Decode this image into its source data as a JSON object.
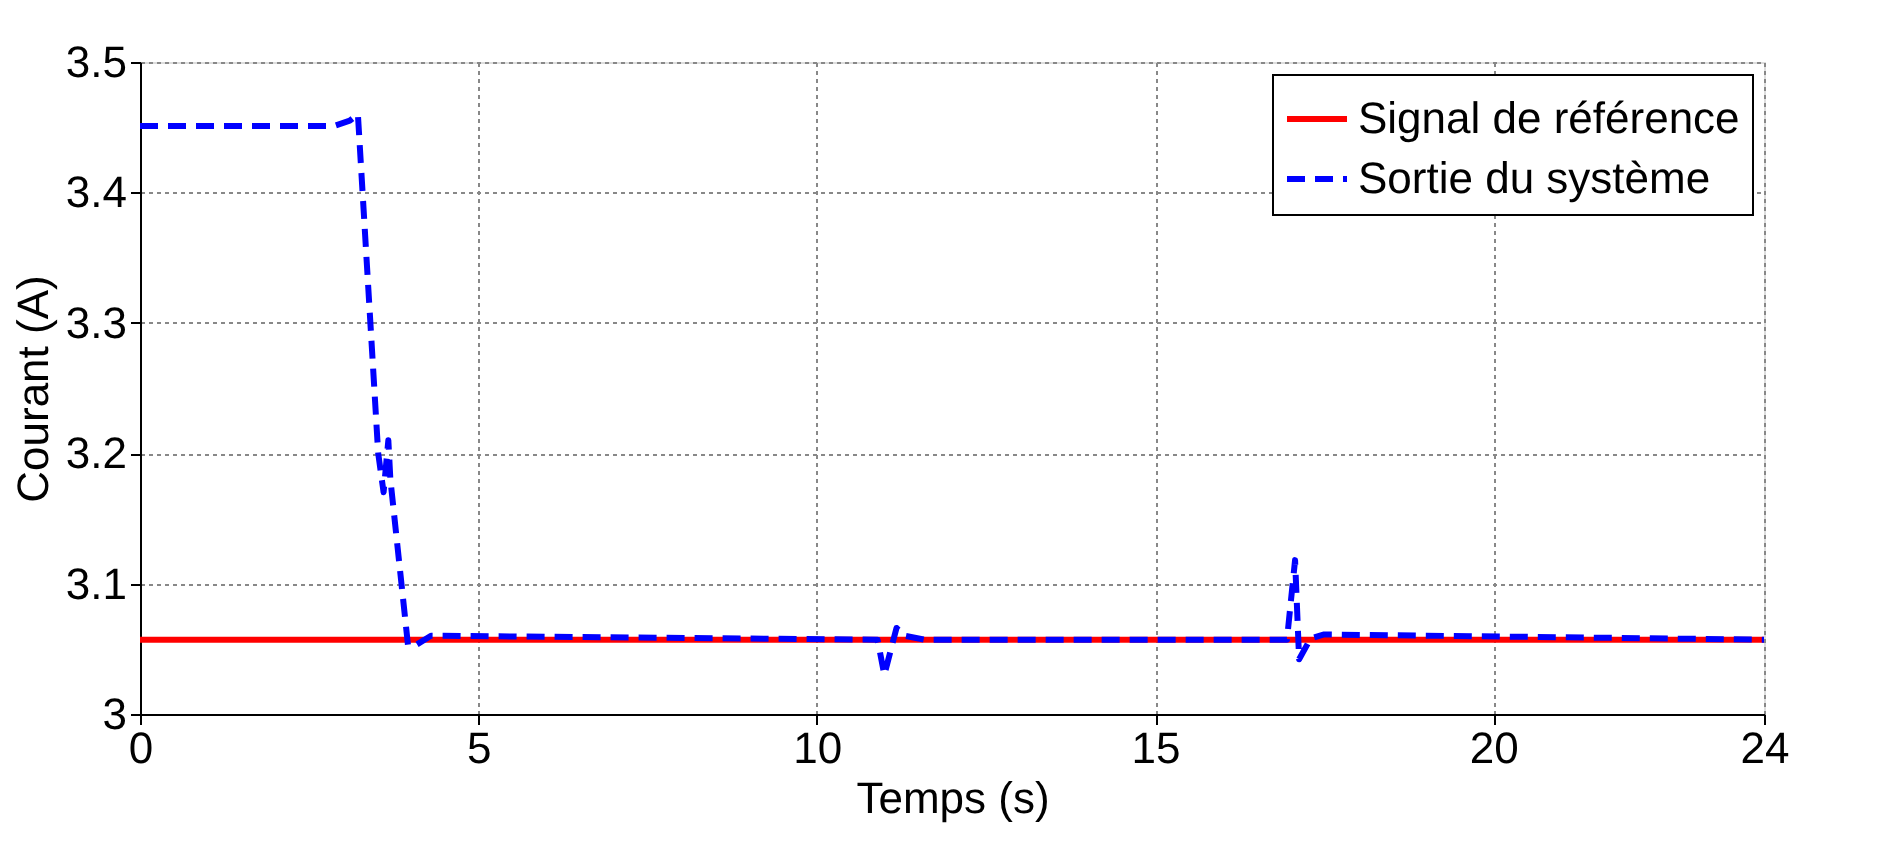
{
  "chart_data": {
    "type": "line",
    "xlabel": "Temps (s)",
    "ylabel": "Courant (A)",
    "xlim": [
      0,
      24
    ],
    "xticks": [
      0,
      5,
      10,
      15,
      20,
      24
    ],
    "ylim": [
      3,
      3.5
    ],
    "yticks": [
      3,
      3.1,
      3.2,
      3.3,
      3.4,
      3.5
    ],
    "grid": true,
    "legend": "top right",
    "series": [
      {
        "name": "Signal de référence",
        "color": "#ff0000",
        "line_style": "solid",
        "x": [
          0,
          24
        ],
        "values": [
          3.057,
          3.057
        ]
      },
      {
        "name": "Sortie du système",
        "color": "#0000ff",
        "line_style": "dashed",
        "x": [
          0,
          2.87,
          3.1,
          3.22,
          3.52,
          3.6,
          3.67,
          3.7,
          3.96,
          4.05,
          4.3,
          10.9,
          11.0,
          11.18,
          11.3,
          11.6,
          16.95,
          17.07,
          17.13,
          17.3,
          17.5,
          24
        ],
        "values": [
          3.451,
          3.451,
          3.455,
          3.46,
          3.2,
          3.17,
          3.21,
          3.18,
          3.053,
          3.052,
          3.06,
          3.057,
          3.03,
          3.066,
          3.06,
          3.057,
          3.057,
          3.118,
          3.042,
          3.058,
          3.061,
          3.057
        ]
      }
    ]
  }
}
